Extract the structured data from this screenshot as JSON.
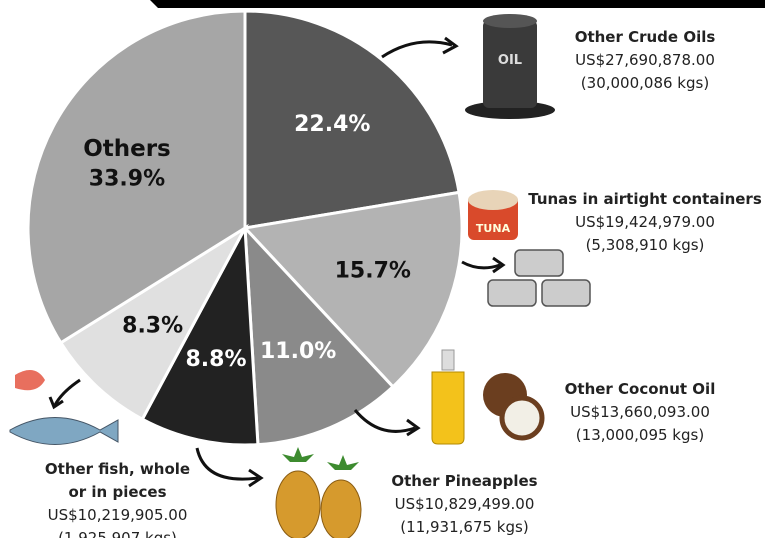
{
  "chart_data": {
    "type": "pie",
    "categories": [
      "Other Crude Oils",
      "Tunas in airtight containers",
      "Other Coconut Oil",
      "Other Pineapples",
      "Other fish, whole or in pieces",
      "Others"
    ],
    "values": [
      22.4,
      15.7,
      11.0,
      8.8,
      8.3,
      33.9
    ],
    "value_labels": [
      "22.4%",
      "15.7%",
      "11.0%",
      "8.8%",
      "8.3%",
      "33.9%"
    ],
    "colors": [
      "#575757",
      "#b3b3b3",
      "#8a8a8a",
      "#222222",
      "#e0e0e0",
      "#a6a6a6"
    ],
    "annotations": [
      {
        "amount": "US$27,690,878.00",
        "weight": "(30,000,086 kgs)"
      },
      {
        "amount": "US$19,424,979.00",
        "weight": "(5,308,910 kgs)"
      },
      {
        "amount": "US$13,660,093.00",
        "weight": "(13,000,095 kgs)"
      },
      {
        "amount": "US$10,829,499.00",
        "weight": "(11,931,675 kgs)"
      },
      {
        "amount": "US$10,219,905.00",
        "weight": "(1,925,907 kgs)"
      },
      null
    ]
  }
}
